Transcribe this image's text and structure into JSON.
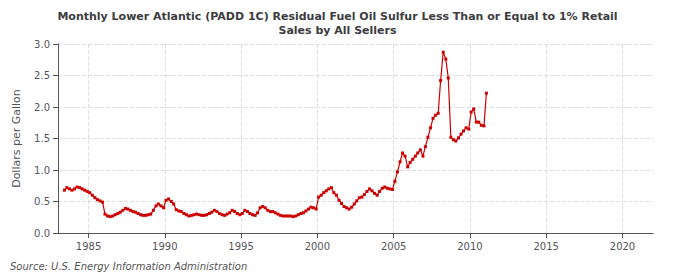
{
  "chart_data": {
    "type": "line",
    "title": "Monthly Lower Atlantic (PADD 1C) Residual Fuel Oil Sulfur Less Than or Equal to 1% Retail\nSales by All Sellers",
    "ylabel": "Dollars per Gallon",
    "annotations": [
      "Source: U.S. Energy Information Administration"
    ],
    "color": "#cc0000",
    "marker": "square",
    "grid": true,
    "xlim": [
      1983,
      2022
    ],
    "ylim": [
      0.0,
      3.0
    ],
    "xticks": [
      1985,
      1990,
      1995,
      2000,
      2005,
      2010,
      2015,
      2020
    ],
    "yticks": [
      {
        "value": 0,
        "label": "0.0"
      },
      0.5,
      {
        "value": 1,
        "label": "1.0"
      },
      1.5,
      {
        "value": 2,
        "label": "2.0"
      },
      2.5,
      {
        "value": 3,
        "label": "3.0"
      }
    ],
    "x": [
      1983.42,
      1983.58,
      1983.75,
      1983.92,
      1984.08,
      1984.25,
      1984.42,
      1984.58,
      1984.75,
      1984.92,
      1985.08,
      1985.25,
      1985.42,
      1985.58,
      1985.75,
      1985.92,
      1986.08,
      1986.25,
      1986.42,
      1986.58,
      1986.75,
      1986.92,
      1987.08,
      1987.25,
      1987.42,
      1987.58,
      1987.75,
      1987.92,
      1988.08,
      1988.25,
      1988.42,
      1988.58,
      1988.75,
      1988.92,
      1989.08,
      1989.25,
      1989.42,
      1989.58,
      1989.75,
      1989.92,
      1990.08,
      1990.25,
      1990.42,
      1990.58,
      1990.75,
      1990.92,
      1991.08,
      1991.25,
      1991.42,
      1991.58,
      1991.75,
      1991.92,
      1992.08,
      1992.25,
      1992.42,
      1992.58,
      1992.75,
      1992.92,
      1993.08,
      1993.25,
      1993.42,
      1993.58,
      1993.75,
      1993.92,
      1994.08,
      1994.25,
      1994.42,
      1994.58,
      1994.75,
      1994.92,
      1995.08,
      1995.25,
      1995.42,
      1995.58,
      1995.75,
      1995.92,
      1996.08,
      1996.25,
      1996.42,
      1996.58,
      1996.75,
      1996.92,
      1997.08,
      1997.25,
      1997.42,
      1997.58,
      1997.75,
      1997.92,
      1998.08,
      1998.25,
      1998.42,
      1998.58,
      1998.75,
      1998.92,
      1999.08,
      1999.25,
      1999.42,
      1999.58,
      1999.75,
      1999.92,
      2000.08,
      2000.25,
      2000.42,
      2000.58,
      2000.75,
      2000.92,
      2001.08,
      2001.25,
      2001.42,
      2001.58,
      2001.75,
      2001.92,
      2002.08,
      2002.25,
      2002.42,
      2002.58,
      2002.75,
      2002.92,
      2003.08,
      2003.25,
      2003.42,
      2003.58,
      2003.75,
      2003.92,
      2004.08,
      2004.25,
      2004.42,
      2004.58,
      2004.75,
      2004.92,
      2005.08,
      2005.25,
      2005.42,
      2005.58,
      2005.75,
      2005.92,
      2006.08,
      2006.25,
      2006.42,
      2006.58,
      2006.75,
      2006.92,
      2007.08,
      2007.25,
      2007.42,
      2007.58,
      2007.75,
      2007.92,
      2008.08,
      2008.25,
      2008.42,
      2008.58,
      2008.75,
      2008.92,
      2009.08,
      2009.25,
      2009.42,
      2009.58,
      2009.75,
      2009.92,
      2010.08,
      2010.25,
      2010.42,
      2010.58,
      2010.75,
      2010.92,
      2011.08
    ],
    "values": [
      0.68,
      0.72,
      0.7,
      0.68,
      0.7,
      0.73,
      0.72,
      0.7,
      0.68,
      0.66,
      0.64,
      0.6,
      0.56,
      0.53,
      0.51,
      0.49,
      0.3,
      0.27,
      0.26,
      0.27,
      0.29,
      0.31,
      0.33,
      0.36,
      0.39,
      0.38,
      0.36,
      0.34,
      0.33,
      0.31,
      0.29,
      0.28,
      0.28,
      0.29,
      0.3,
      0.36,
      0.43,
      0.46,
      0.43,
      0.4,
      0.52,
      0.54,
      0.5,
      0.46,
      0.37,
      0.35,
      0.34,
      0.31,
      0.29,
      0.27,
      0.28,
      0.29,
      0.3,
      0.29,
      0.28,
      0.28,
      0.29,
      0.31,
      0.33,
      0.36,
      0.34,
      0.31,
      0.29,
      0.28,
      0.3,
      0.32,
      0.36,
      0.34,
      0.31,
      0.29,
      0.31,
      0.36,
      0.34,
      0.31,
      0.29,
      0.28,
      0.32,
      0.4,
      0.42,
      0.4,
      0.36,
      0.34,
      0.34,
      0.32,
      0.3,
      0.28,
      0.27,
      0.27,
      0.27,
      0.27,
      0.26,
      0.27,
      0.29,
      0.31,
      0.32,
      0.35,
      0.38,
      0.41,
      0.4,
      0.38,
      0.57,
      0.6,
      0.64,
      0.67,
      0.7,
      0.72,
      0.64,
      0.6,
      0.52,
      0.47,
      0.42,
      0.4,
      0.38,
      0.41,
      0.46,
      0.51,
      0.56,
      0.57,
      0.61,
      0.66,
      0.7,
      0.67,
      0.63,
      0.6,
      0.66,
      0.71,
      0.73,
      0.71,
      0.7,
      0.69,
      0.82,
      0.97,
      1.13,
      1.27,
      1.22,
      1.05,
      1.12,
      1.17,
      1.22,
      1.27,
      1.32,
      1.22,
      1.37,
      1.52,
      1.67,
      1.82,
      1.87,
      1.9,
      2.42,
      2.87,
      2.76,
      2.46,
      1.52,
      1.48,
      1.46,
      1.51,
      1.57,
      1.62,
      1.67,
      1.65,
      1.92,
      1.97,
      1.76,
      1.76,
      1.71,
      1.7,
      2.22
    ]
  }
}
